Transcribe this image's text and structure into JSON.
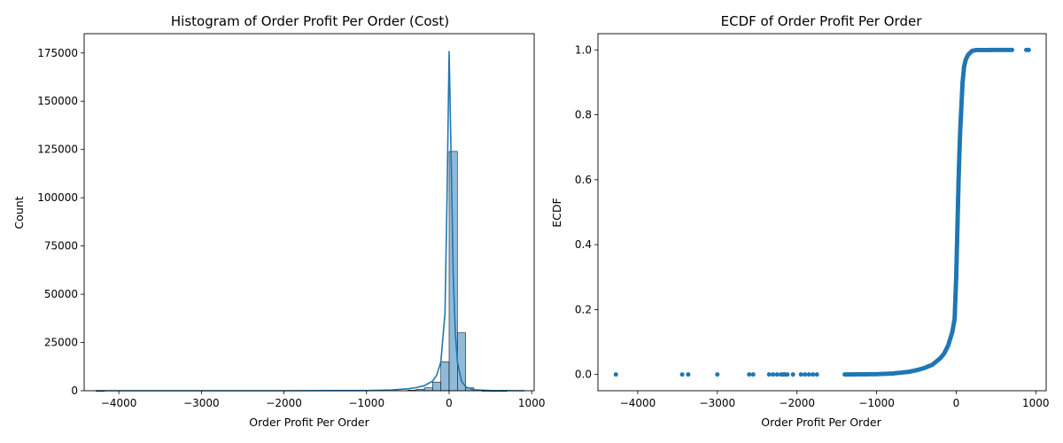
{
  "chart_data": [
    {
      "type": "bar",
      "title": "Histogram of Order Profit Per Order (Cost)",
      "xlabel": "Order Profit Per Order",
      "ylabel": "Count",
      "xlim": [
        -4420,
        1030
      ],
      "ylim": [
        0,
        185000
      ],
      "xticks": [
        -4000,
        -3000,
        -2000,
        -1000,
        0,
        1000
      ],
      "yticks": [
        0,
        25000,
        50000,
        75000,
        100000,
        125000,
        150000,
        175000
      ],
      "grid": false,
      "color": "#1f77b4",
      "bins": [
        {
          "x0": -4275,
          "x1": -4175,
          "count": 10
        },
        {
          "x0": -500,
          "x1": -400,
          "count": 300
        },
        {
          "x0": -400,
          "x1": -300,
          "count": 700
        },
        {
          "x0": -300,
          "x1": -200,
          "count": 1500
        },
        {
          "x0": -200,
          "x1": -100,
          "count": 4500
        },
        {
          "x0": -100,
          "x1": 0,
          "count": 15000
        },
        {
          "x0": 0,
          "x1": 100,
          "count": 124000
        },
        {
          "x0": 100,
          "x1": 200,
          "count": 30000
        },
        {
          "x0": 200,
          "x1": 300,
          "count": 1500
        },
        {
          "x0": 300,
          "x1": 400,
          "count": 300
        },
        {
          "x0": 400,
          "x1": 500,
          "count": 120
        },
        {
          "x0": 500,
          "x1": 600,
          "count": 50
        },
        {
          "x0": 600,
          "x1": 700,
          "count": 20
        }
      ],
      "kde": {
        "x": [
          -4275,
          -3000,
          -2000,
          -1000,
          -700,
          -500,
          -400,
          -300,
          -200,
          -150,
          -100,
          -50,
          -25,
          0,
          25,
          50,
          75,
          100,
          150,
          200,
          300,
          500,
          911
        ],
        "y": [
          0,
          0,
          0,
          100,
          400,
          1000,
          1600,
          2600,
          5000,
          8000,
          15000,
          40000,
          100000,
          176000,
          120000,
          60000,
          30000,
          15000,
          5000,
          2000,
          500,
          80,
          0
        ]
      }
    },
    {
      "type": "scatter",
      "title": "ECDF of Order Profit Per Order",
      "xlabel": "Order Profit Per Order",
      "ylabel": "ECDF",
      "xlim": [
        -4500,
        1130
      ],
      "ylim": [
        -0.05,
        1.05
      ],
      "xticks": [
        -4000,
        -3000,
        -2000,
        -1000,
        0,
        1000
      ],
      "yticks": [
        0.0,
        0.2,
        0.4,
        0.6,
        0.8,
        1.0
      ],
      "ytick_labels": [
        "0.0",
        "0.2",
        "0.4",
        "0.6",
        "0.8",
        "1.0"
      ],
      "grid": false,
      "color": "#1f77b4",
      "outliers_x": [
        -4275,
        -3442,
        -3366,
        -3000,
        -2600,
        -2550,
        -2350,
        -2300,
        -2250,
        -2200,
        -2170,
        -2150,
        -2120,
        -2050,
        -1950,
        -1900,
        -1850,
        -1800,
        -1750
      ],
      "curve": {
        "x": [
          -1400,
          -1000,
          -800,
          -600,
          -500,
          -400,
          -300,
          -200,
          -150,
          -100,
          -50,
          -20,
          0,
          10,
          20,
          30,
          40,
          50,
          60,
          70,
          80,
          100,
          120,
          150,
          200,
          250,
          700
        ],
        "y": [
          0.0,
          0.001,
          0.003,
          0.008,
          0.013,
          0.02,
          0.03,
          0.05,
          0.065,
          0.09,
          0.13,
          0.17,
          0.3,
          0.4,
          0.5,
          0.6,
          0.68,
          0.75,
          0.8,
          0.85,
          0.9,
          0.95,
          0.97,
          0.985,
          0.997,
          0.9995,
          1.0
        ]
      },
      "tail_x": [
        700,
        880,
        900,
        911
      ],
      "tail_y": [
        1.0,
        1.0,
        1.0,
        1.0
      ]
    }
  ]
}
